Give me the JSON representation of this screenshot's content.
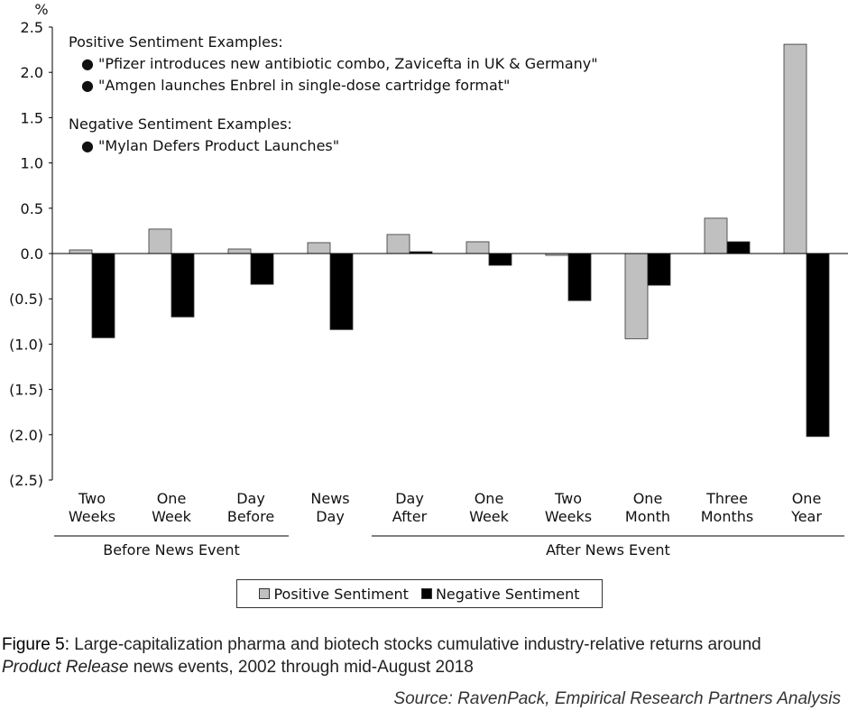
{
  "chart_data": {
    "type": "bar",
    "unit_label": "%",
    "categories": [
      [
        "Two",
        "Weeks"
      ],
      [
        "One",
        "Week"
      ],
      [
        "Day",
        "Before"
      ],
      [
        "News",
        "Day"
      ],
      [
        "Day",
        "After"
      ],
      [
        "One",
        "Week"
      ],
      [
        "Two",
        "Weeks"
      ],
      [
        "One",
        "Month"
      ],
      [
        "Three",
        "Months"
      ],
      [
        "One",
        "Year"
      ]
    ],
    "series": [
      {
        "name": "Positive Sentiment",
        "color": "#c0c0c0",
        "values": [
          0.04,
          0.27,
          0.05,
          0.12,
          0.21,
          0.13,
          -0.02,
          -0.94,
          0.39,
          2.31
        ]
      },
      {
        "name": "Negative Sentiment",
        "color": "#000000",
        "values": [
          -0.93,
          -0.7,
          -0.34,
          -0.84,
          0.02,
          -0.13,
          -0.52,
          -0.35,
          0.13,
          -2.02
        ]
      }
    ],
    "ylim": [
      -2.5,
      2.5
    ],
    "yticks": [
      "2.5",
      "2.0",
      "1.5",
      "1.0",
      "0.5",
      "0.0",
      "(0.5)",
      "(1.0)",
      "(1.5)",
      "(2.0)",
      "(2.5)"
    ],
    "ytick_values": [
      2.5,
      2.0,
      1.5,
      1.0,
      0.5,
      0.0,
      -0.5,
      -1.0,
      -1.5,
      -2.0,
      -2.5
    ],
    "groups": [
      {
        "label": "Before News Event",
        "from": 0,
        "to": 2
      },
      {
        "label": "After News Event",
        "from": 4,
        "to": 9
      }
    ],
    "legend_position": "bottom",
    "grid": false
  },
  "annotation": {
    "positive_header": "Positive Sentiment Examples:",
    "positive_items": [
      "\"Pfizer introduces new antibiotic combo, Zavicefta in UK & Germany\"",
      "\"Amgen launches Enbrel in single-dose cartridge format\""
    ],
    "negative_header": "Negative Sentiment Examples:",
    "negative_items": [
      "\"Mylan Defers Product Launches\""
    ]
  },
  "caption": {
    "figure_label": "Figure 5:",
    "text_1": " Large-capitalization pharma and biotech stocks cumulative industry-relative returns around",
    "text_italic": "Product Release",
    "text_2": " news events, 2002 through mid-August 2018",
    "source": "Source: RavenPack, Empirical Research Partners Analysis"
  }
}
